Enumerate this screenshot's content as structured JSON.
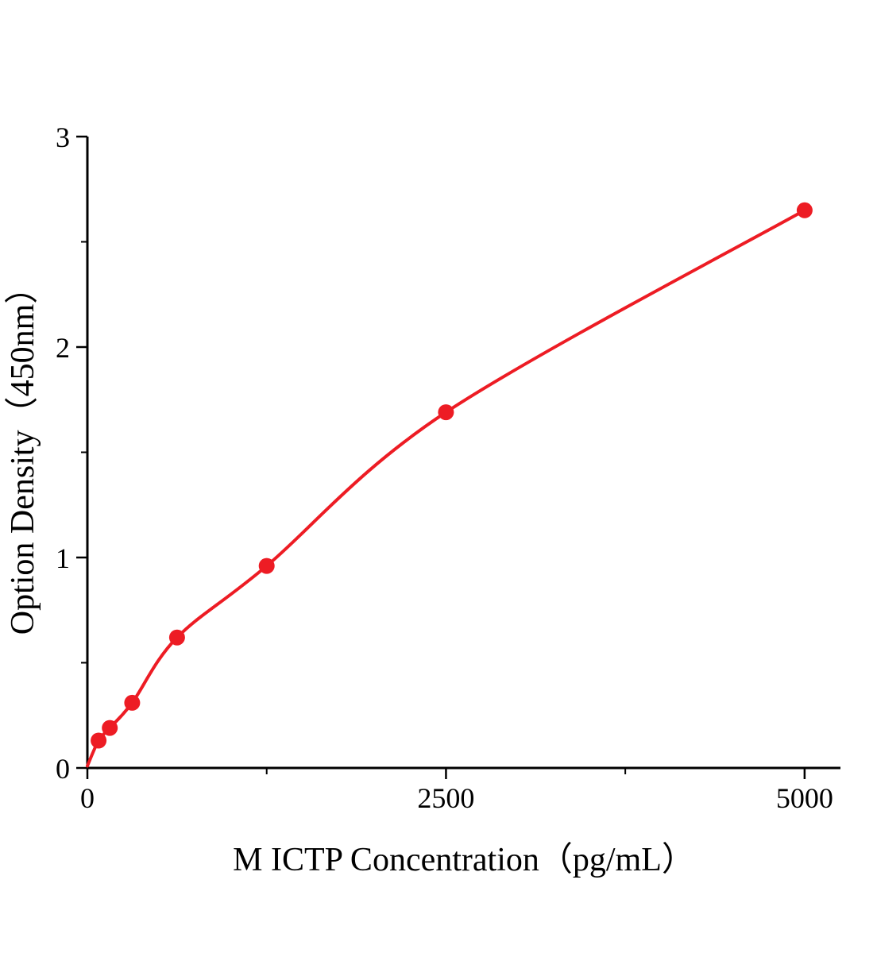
{
  "chart_data": {
    "type": "line",
    "title": "",
    "xlabel": "M ICTP Concentration（pg/mL）",
    "ylabel": "Option Density（450nm）",
    "xlim": [
      0,
      5250
    ],
    "ylim": [
      0,
      3
    ],
    "x_major_ticks": [
      0,
      2500,
      5000
    ],
    "x_minor_ticks": [
      1250,
      3750
    ],
    "y_major_ticks": [
      0,
      1,
      2,
      3
    ],
    "y_minor_ticks": [
      0.5,
      1.5,
      2.5
    ],
    "grid": false,
    "legend": false,
    "line_color": "#ed1c24",
    "marker_color": "#ed1c24",
    "axis_color": "#000000",
    "curve": {
      "x": [
        0,
        78.1,
        156.3,
        312.5,
        625,
        1250,
        2500,
        5000
      ],
      "y": [
        0.01,
        0.13,
        0.19,
        0.31,
        0.62,
        0.96,
        1.69,
        2.65
      ]
    },
    "markers": {
      "x": [
        78.1,
        156.3,
        312.5,
        625,
        1250,
        2500,
        5000
      ],
      "y": [
        0.13,
        0.19,
        0.31,
        0.62,
        0.96,
        1.69,
        2.65
      ]
    }
  }
}
